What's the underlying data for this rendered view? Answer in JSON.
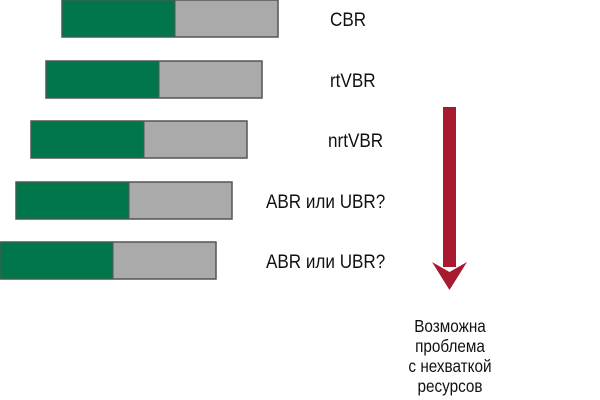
{
  "colors": {
    "green": "#00764a",
    "gray": "#aaaaaa",
    "border": "#555555",
    "arrow": "#a6192e"
  },
  "rows": [
    {
      "label": "CBR"
    },
    {
      "label": "rtVBR"
    },
    {
      "label": "nrtVBR"
    },
    {
      "label": "ABR или UBR?"
    },
    {
      "label": "ABR или UBR?"
    }
  ],
  "note": {
    "lines": [
      "Возможна",
      "проблема",
      "с нехваткой",
      "ресурсов"
    ]
  }
}
